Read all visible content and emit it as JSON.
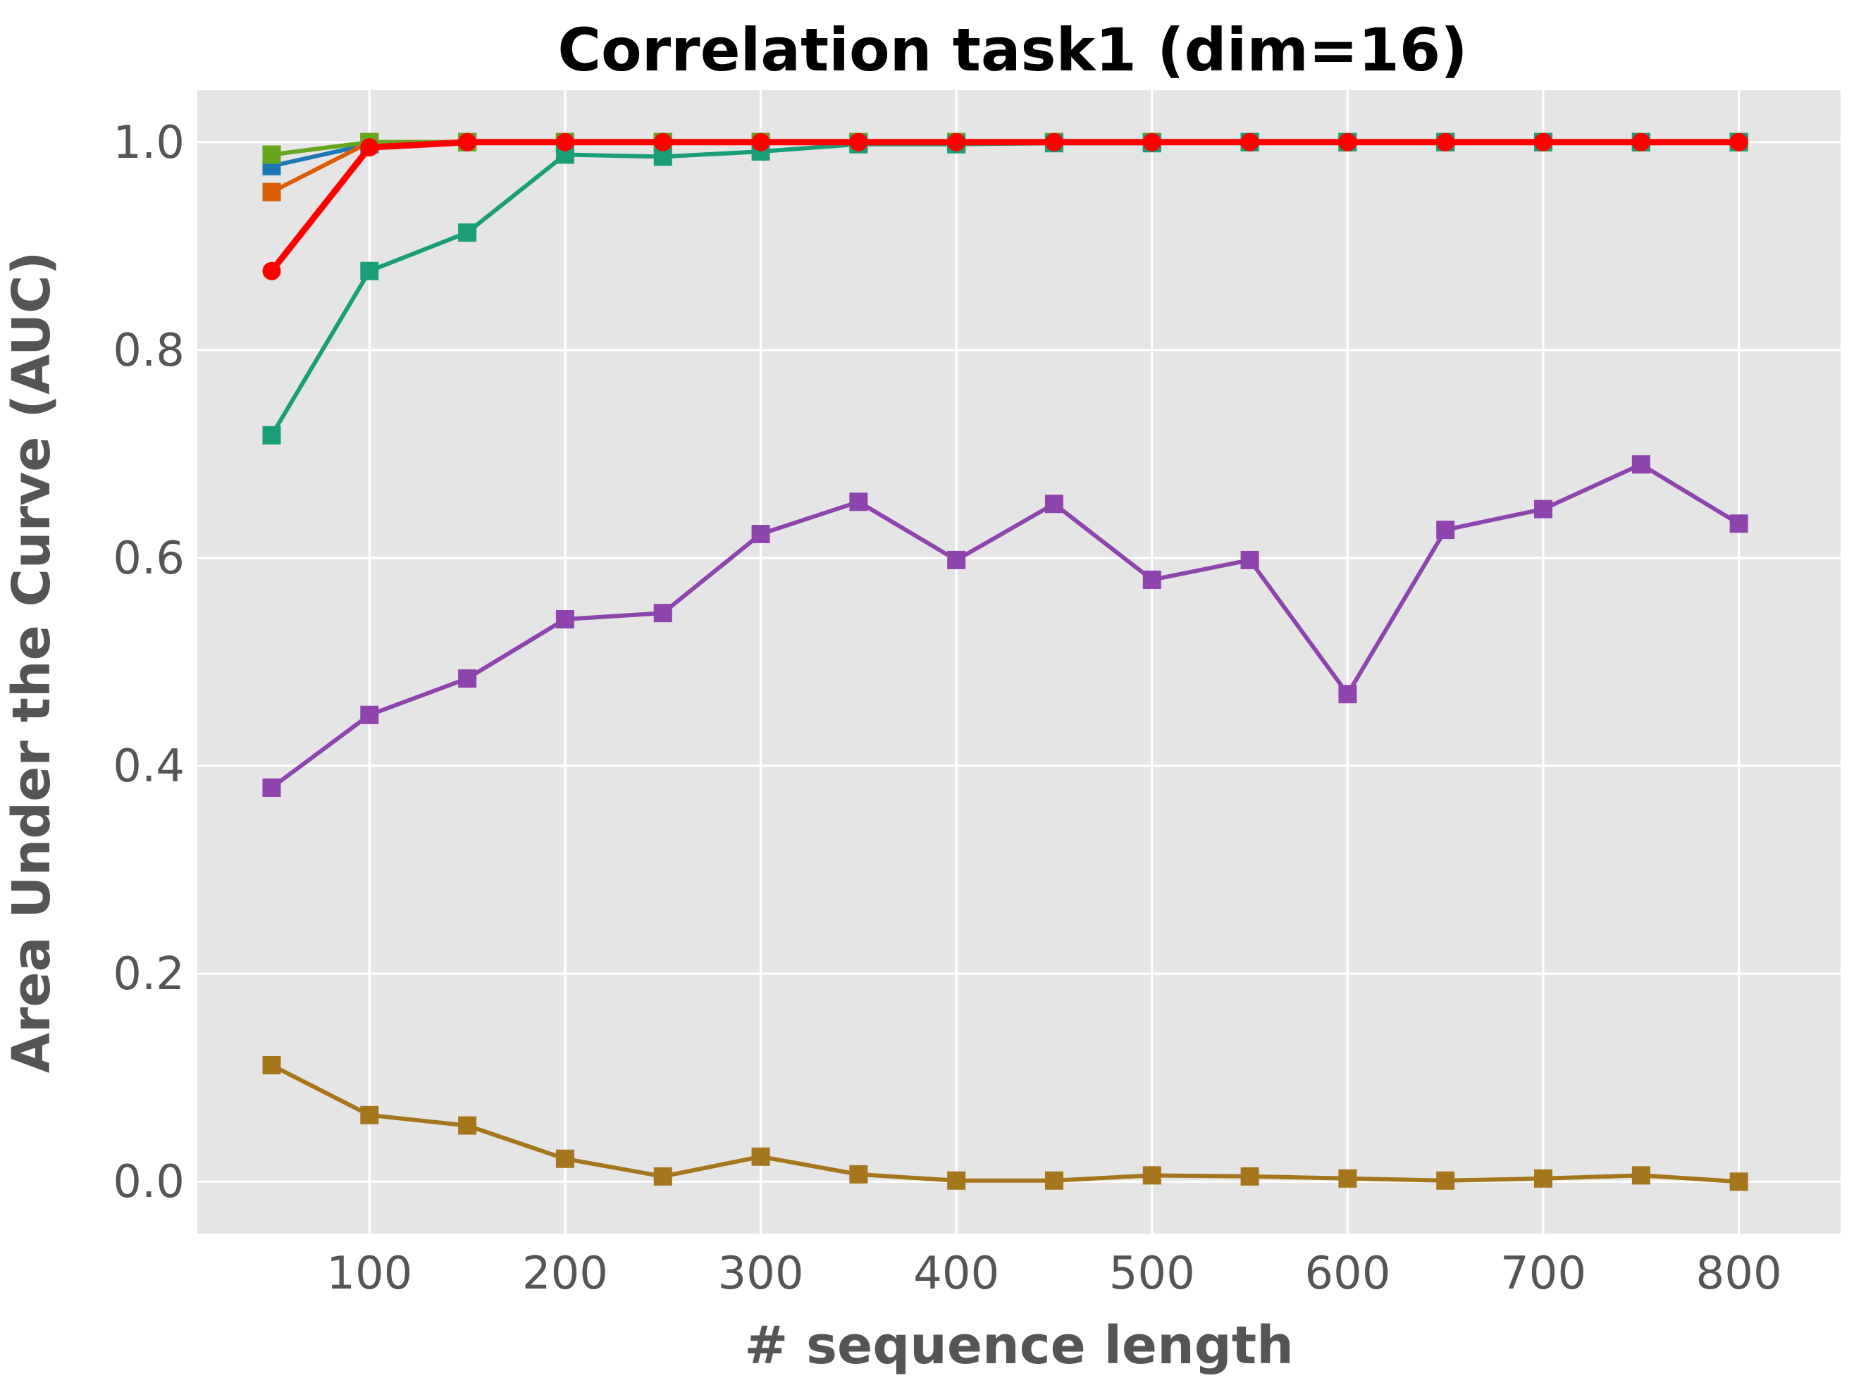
{
  "chart_data": {
    "type": "line",
    "title": "Correlation task1 (dim=16)",
    "xlabel": "# sequence length",
    "ylabel": "Area Under the Curve (AUC)",
    "xlim": [
      12,
      852
    ],
    "ylim": [
      -0.05,
      1.05
    ],
    "xticks": [
      100,
      200,
      300,
      400,
      500,
      600,
      700,
      800
    ],
    "yticks": [
      0.0,
      0.2,
      0.4,
      0.6,
      0.8,
      1.0
    ],
    "grid": true,
    "background": "#e5e5e5",
    "x": [
      50,
      100,
      150,
      200,
      250,
      300,
      350,
      400,
      450,
      500,
      550,
      600,
      650,
      700,
      750,
      800
    ],
    "series": [
      {
        "color": "#1f77b4",
        "marker": "square",
        "values": [
          0.977,
          0.998,
          1.0,
          1.0,
          1.0,
          1.0,
          1.0,
          1.0,
          1.0,
          1.0,
          1.0,
          1.0,
          1.0,
          1.0,
          1.0,
          1.0
        ]
      },
      {
        "color": "#d95f02",
        "marker": "square",
        "values": [
          0.952,
          1.0,
          1.0,
          1.0,
          1.0,
          1.0,
          1.0,
          1.0,
          1.0,
          1.0,
          1.0,
          1.0,
          1.0,
          1.0,
          1.0,
          1.0
        ]
      },
      {
        "color": "#66a61e",
        "marker": "square",
        "values": [
          0.988,
          1.0,
          1.0,
          1.0,
          1.0,
          1.0,
          1.0,
          1.0,
          1.0,
          1.0,
          1.0,
          1.0,
          1.0,
          1.0,
          1.0,
          1.0
        ]
      },
      {
        "color": "#1b9e77",
        "marker": "square",
        "values": [
          0.718,
          0.876,
          0.913,
          0.988,
          0.986,
          0.991,
          0.998,
          0.998,
          0.999,
          0.999,
          1.0,
          1.0,
          1.0,
          1.0,
          1.0,
          1.0
        ]
      },
      {
        "color": "#8e44ad",
        "marker": "square",
        "values": [
          0.379,
          0.449,
          0.484,
          0.541,
          0.547,
          0.623,
          0.654,
          0.598,
          0.652,
          0.579,
          0.598,
          0.469,
          0.627,
          0.647,
          0.69,
          0.633
        ]
      },
      {
        "color": "#a6761d",
        "marker": "square",
        "values": [
          0.112,
          0.064,
          0.054,
          0.022,
          0.005,
          0.024,
          0.007,
          0.001,
          0.001,
          0.006,
          0.005,
          0.003,
          0.001,
          0.003,
          0.006,
          0.0
        ]
      },
      {
        "color": "#ff0000",
        "marker": "circle",
        "thick": true,
        "values": [
          0.876,
          0.995,
          1.0,
          1.0,
          1.0,
          1.0,
          1.0,
          1.0,
          1.0,
          1.0,
          1.0,
          1.0,
          1.0,
          1.0,
          1.0,
          1.0
        ]
      }
    ]
  }
}
